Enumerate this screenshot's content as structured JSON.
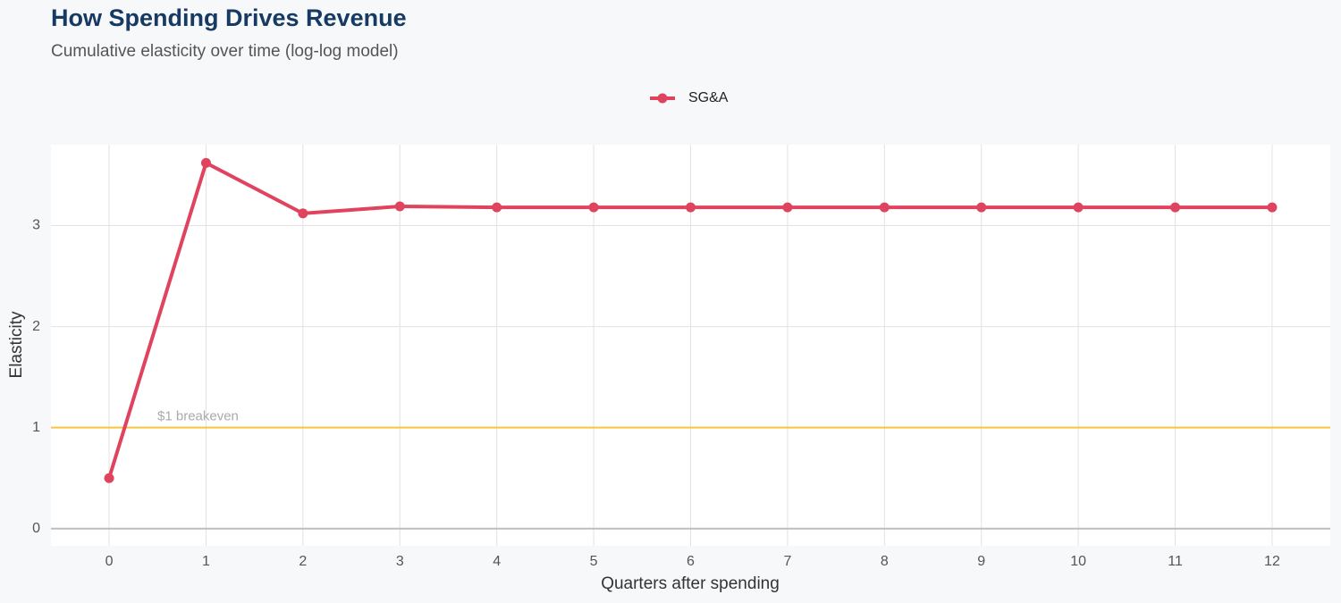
{
  "chart_data": {
    "type": "line",
    "title": "How Spending Drives Revenue",
    "subtitle": "Cumulative elasticity over time (log-log model)",
    "x_label": "Quarters after spending",
    "y_label": "Elasticity",
    "x": [
      0,
      1,
      2,
      3,
      4,
      5,
      6,
      7,
      8,
      9,
      10,
      11,
      12
    ],
    "series": [
      {
        "name": "SG&A",
        "color": "#e0435e",
        "values": [
          0.5,
          3.62,
          3.12,
          3.19,
          3.18,
          3.18,
          3.18,
          3.18,
          3.18,
          3.18,
          3.18,
          3.18,
          3.18
        ]
      }
    ],
    "reference_line": {
      "value": 1,
      "label": "$1 breakeven",
      "color": "#f5c542"
    },
    "xlim": [
      -0.6,
      12.6
    ],
    "ylim": [
      -0.17,
      3.8
    ],
    "xticks": [
      0,
      1,
      2,
      3,
      4,
      5,
      6,
      7,
      8,
      9,
      10,
      11,
      12
    ],
    "yticks": [
      0,
      1,
      2,
      3
    ],
    "grid": true,
    "legend": "top"
  }
}
